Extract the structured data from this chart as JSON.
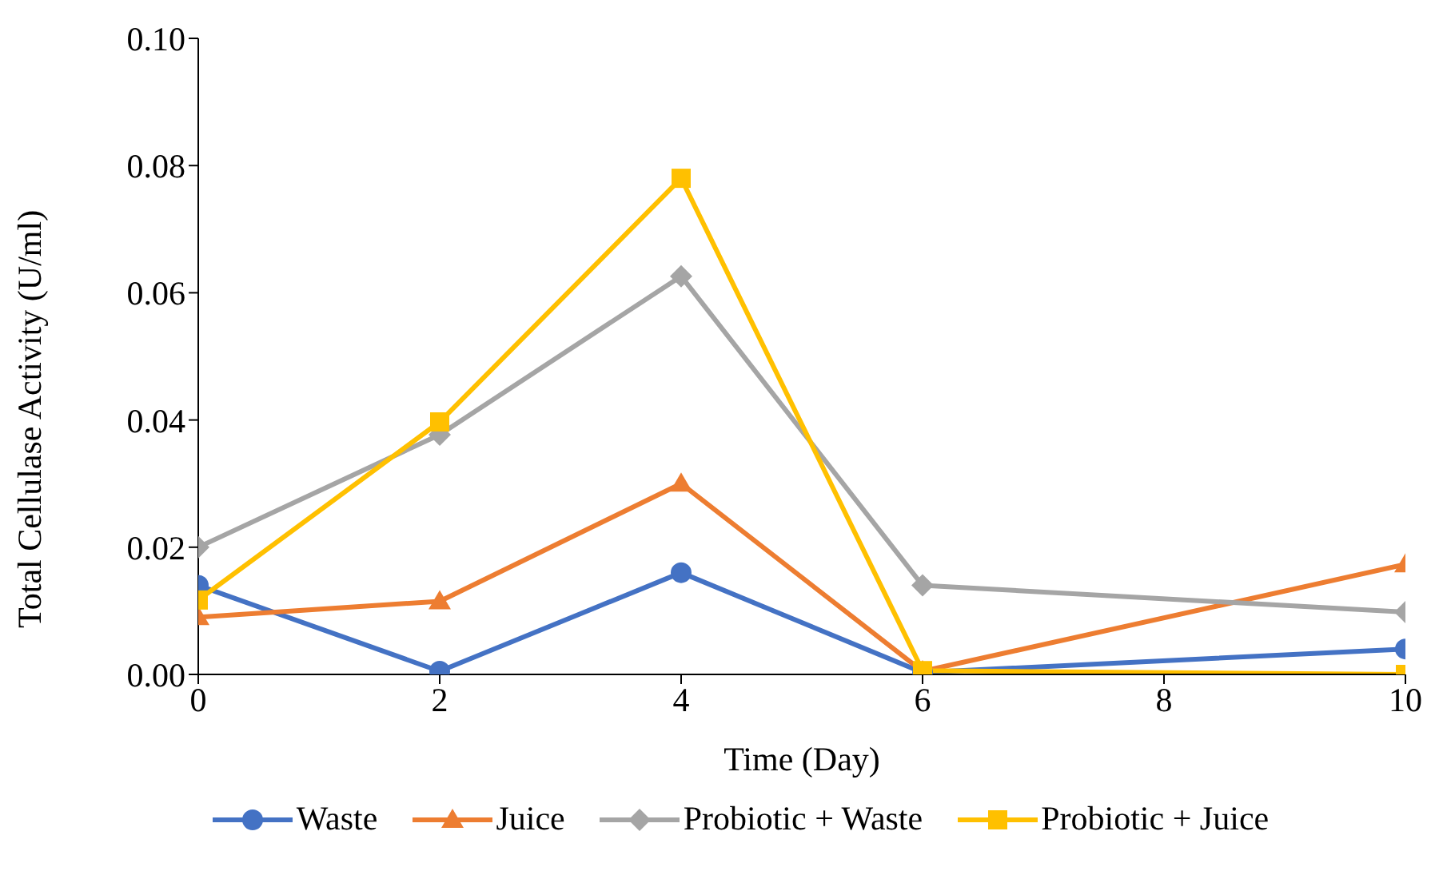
{
  "chart_data": {
    "type": "line",
    "xlabel": "Time (Day)",
    "ylabel": "Total Cellulase Activity (U/ml)",
    "x": [
      0,
      2,
      4,
      6,
      10
    ],
    "series": [
      {
        "name": "Waste",
        "color": "#4472c4",
        "marker": "circle",
        "values": [
          0.014,
          0.0005,
          0.016,
          0.0003,
          0.004
        ]
      },
      {
        "name": "Juice",
        "color": "#ed7d31",
        "marker": "triangle",
        "values": [
          0.009,
          0.0115,
          0.03,
          0.0005,
          0.0173
        ]
      },
      {
        "name": "Probiotic + Waste",
        "color": "#a5a5a5",
        "marker": "diamond",
        "values": [
          0.02,
          0.0377,
          0.0626,
          0.014,
          0.0098
        ]
      },
      {
        "name": "Probiotic + Juice",
        "color": "#ffc000",
        "marker": "square",
        "values": [
          0.0117,
          0.0397,
          0.078,
          0.0006,
          0.0
        ]
      }
    ],
    "xlim": [
      0,
      10
    ],
    "xticks": [
      0,
      2,
      4,
      6,
      8,
      10
    ],
    "ylim": [
      0,
      0.1
    ],
    "yticks": [
      {
        "value": 0,
        "label": "0.00"
      },
      {
        "value": 0.02,
        "label": "0.02"
      },
      {
        "value": 0.04,
        "label": "0.04"
      },
      {
        "value": 0.06,
        "label": "0.06"
      },
      {
        "value": 0.08,
        "label": "0.08"
      },
      {
        "value": 0.1,
        "label": "0.10"
      }
    ],
    "grid": false,
    "legend": "bottom",
    "line_style": "solid"
  }
}
